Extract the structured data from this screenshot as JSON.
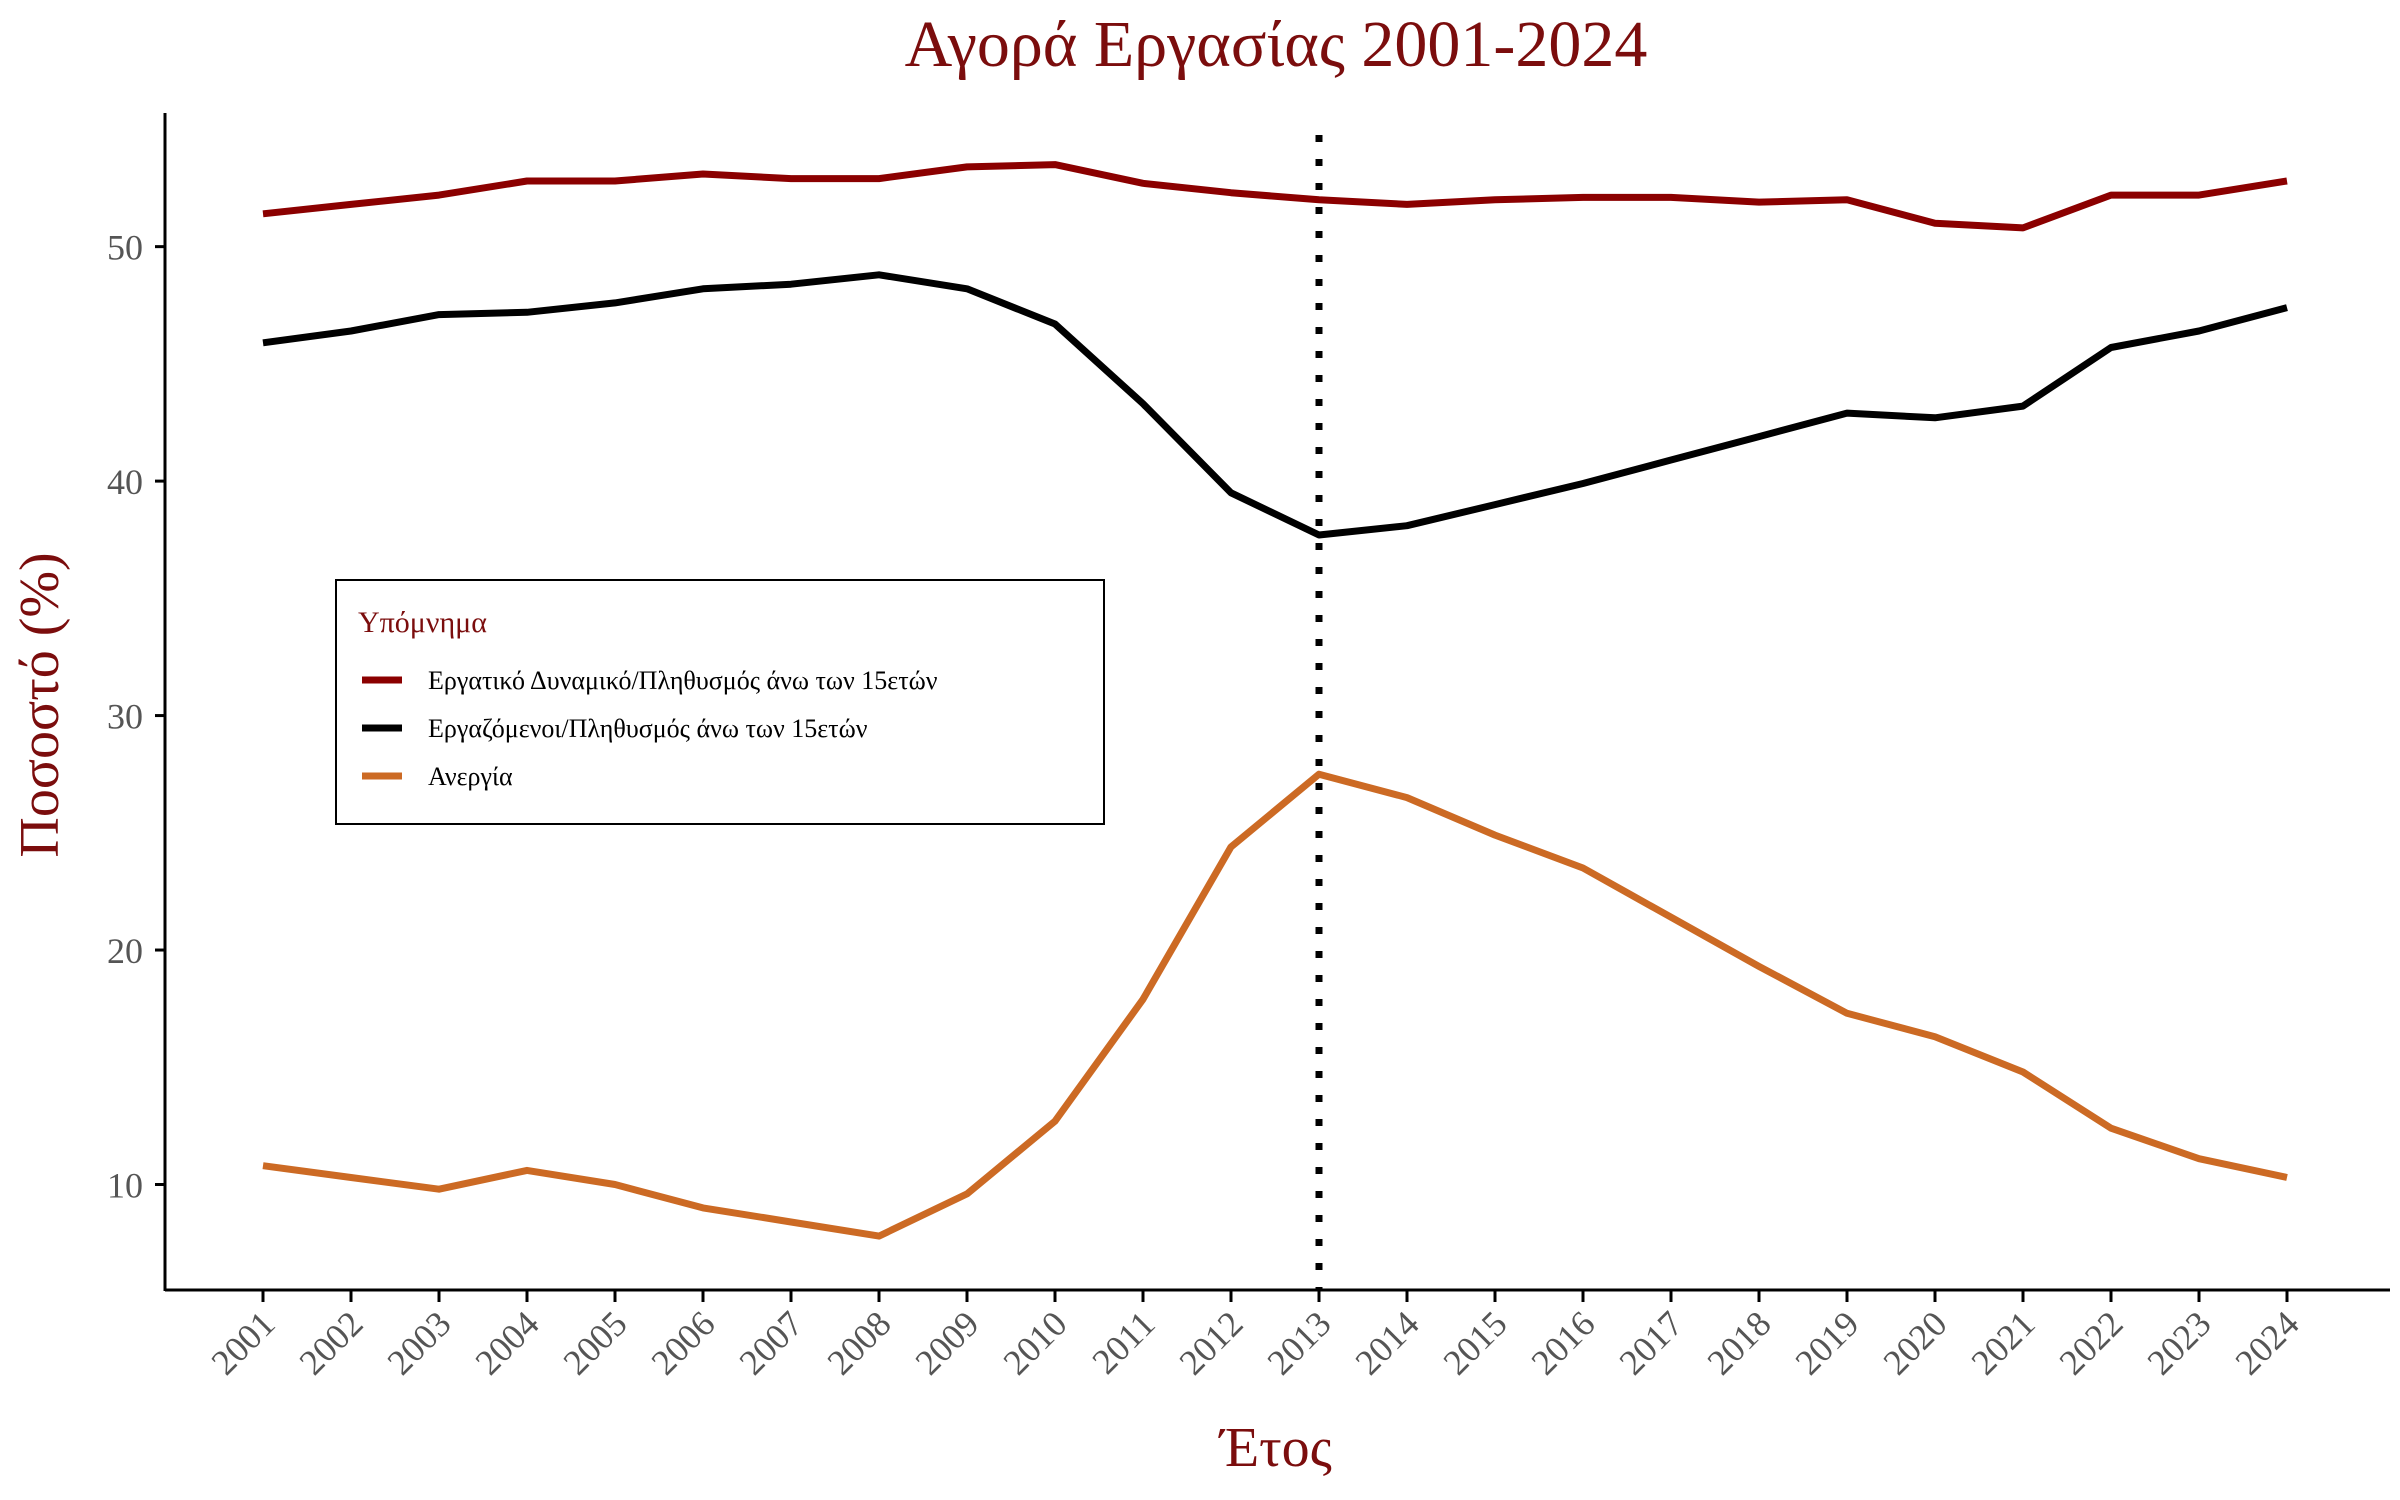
{
  "chart_data": {
    "type": "line",
    "title": "Αγορά Εργασίας 2001-2024",
    "xlabel": "Έτος",
    "ylabel": "Ποσοστό (%)",
    "x": [
      "2001",
      "2002",
      "2003",
      "2004",
      "2005",
      "2006",
      "2007",
      "2008",
      "2009",
      "2010",
      "2011",
      "2012",
      "2013",
      "2014",
      "2015",
      "2016",
      "2017",
      "2018",
      "2019",
      "2020",
      "2021",
      "2022",
      "2023",
      "2024"
    ],
    "yticks": [
      10,
      20,
      30,
      40,
      50
    ],
    "ylim": [
      5.5,
      55.7
    ],
    "grid": false,
    "vline": {
      "x": "2013",
      "style": "dotted",
      "color": "#000000"
    },
    "legend": {
      "title": "Υπόμνημα",
      "placement": "center-left"
    },
    "series": [
      {
        "name": "Εργατικό Δυναμικό/Πληθυσμός άνω των 15ετών",
        "color": "#8b0000",
        "values": [
          51.4,
          51.8,
          52.2,
          52.8,
          52.8,
          53.1,
          52.9,
          52.9,
          53.4,
          53.5,
          52.7,
          52.3,
          52.0,
          51.8,
          52.0,
          52.1,
          52.1,
          51.9,
          52.0,
          51.0,
          50.8,
          52.2,
          52.2,
          52.8
        ]
      },
      {
        "name": "Εργαζόμενοι/Πληθυσμός άνω των 15ετών",
        "color": "#000000",
        "values": [
          45.9,
          46.4,
          47.1,
          47.2,
          47.6,
          48.2,
          48.4,
          48.8,
          48.2,
          46.7,
          43.3,
          39.5,
          37.7,
          38.1,
          39.0,
          39.9,
          40.9,
          41.9,
          42.9,
          42.7,
          43.2,
          45.7,
          46.4,
          47.4
        ]
      },
      {
        "name": "Ανεργία",
        "color": "#cc6a24",
        "values": [
          10.8,
          10.3,
          9.8,
          10.6,
          10.0,
          9.0,
          8.4,
          7.8,
          9.6,
          12.7,
          17.9,
          24.4,
          27.5,
          26.5,
          24.9,
          23.5,
          21.4,
          19.3,
          17.3,
          16.3,
          14.8,
          12.4,
          11.1,
          10.3
        ]
      }
    ]
  }
}
